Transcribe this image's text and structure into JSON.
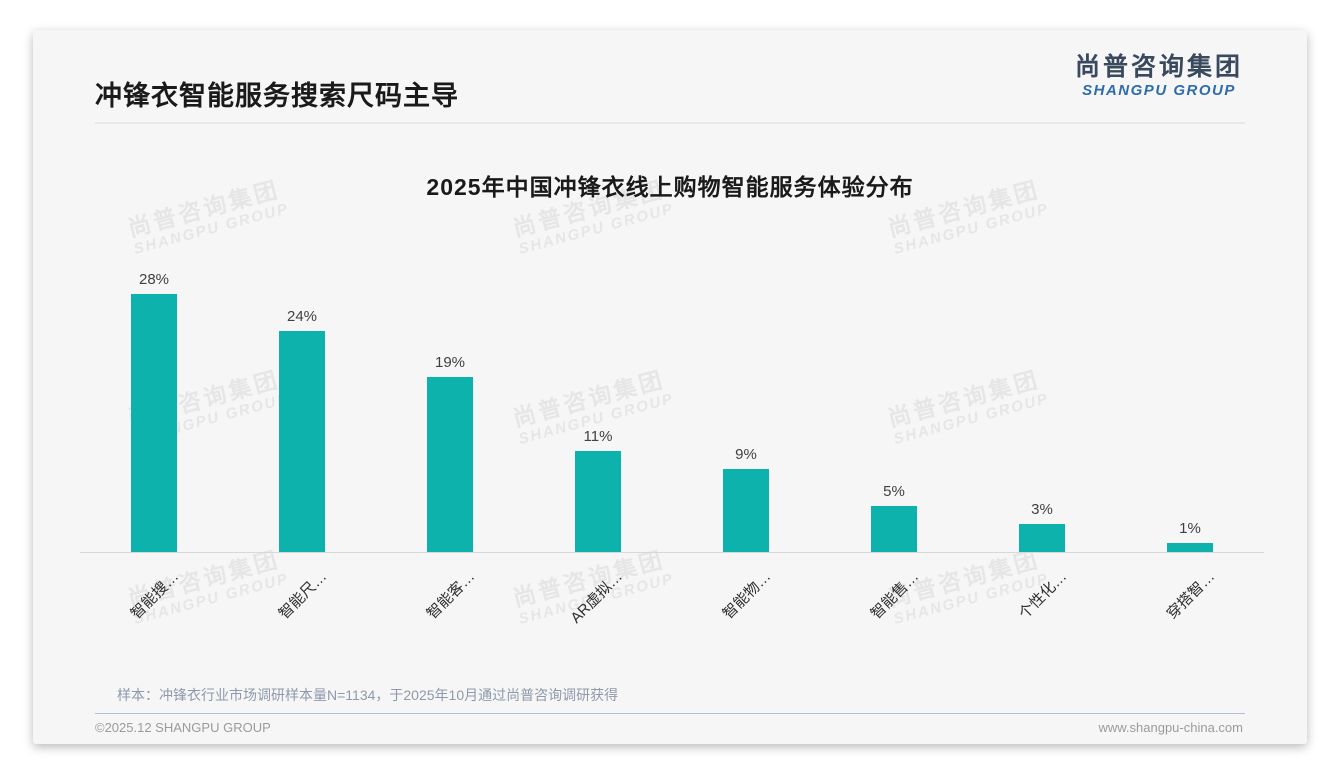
{
  "page": {
    "title": "冲锋衣智能服务搜索尺码主导",
    "logo": {
      "cn": "尚普咨询集团",
      "en": "SHANGPU GROUP"
    },
    "note": "样本：冲锋衣行业市场调研样本量N=1134，于2025年10月通过尚普咨询调研获得",
    "footer": {
      "left": "©2025.12 SHANGPU GROUP",
      "right": "www.shangpu-china.com"
    },
    "watermark": {
      "line1": "尚普咨询集团",
      "line2": "SHANGPU GROUP"
    }
  },
  "chart_data": {
    "type": "bar",
    "title": "2025年中国冲锋衣线上购物智能服务体验分布",
    "categories": [
      "智能搜…",
      "智能尺…",
      "智能客…",
      "AR虚拟…",
      "智能物…",
      "智能售…",
      "个性化…",
      "穿搭智…"
    ],
    "values": [
      28,
      24,
      19,
      11,
      9,
      5,
      3,
      1
    ],
    "value_labels": [
      "28%",
      "24%",
      "19%",
      "11%",
      "9%",
      "5%",
      "3%",
      "1%"
    ],
    "unit": "%",
    "xlabel": "",
    "ylabel": "",
    "ylim": [
      0,
      30
    ],
    "grid": false,
    "legend": false,
    "x_label_rotation": -45,
    "bar_color": "#0cb2ab",
    "colors": {
      "title_text": "#1a1a1a",
      "value_label_text": "#414141",
      "axis_line": "#d8d8d8",
      "logo_cn": "#39495e",
      "logo_en": "#2e6cad",
      "note_text": "#8e99ab",
      "footer_text": "#9b9b9b"
    }
  }
}
